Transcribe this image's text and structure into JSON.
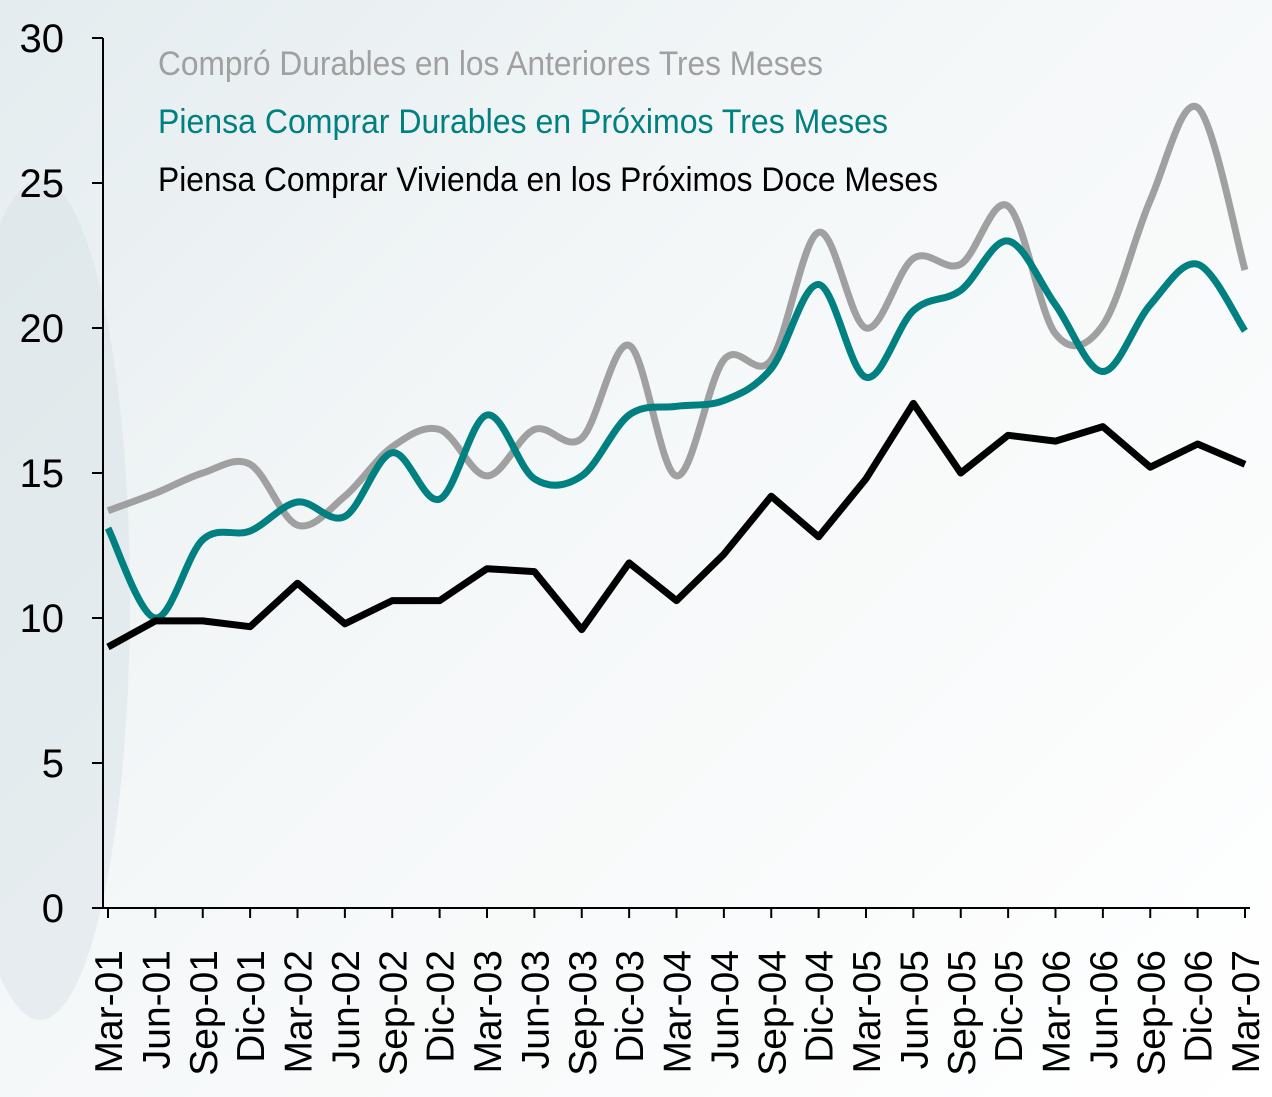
{
  "chart_data": {
    "type": "line",
    "categories": [
      "Mar-01",
      "Jun-01",
      "Sep-01",
      "Dic-01",
      "Mar-02",
      "Jun-02",
      "Sep-02",
      "Dic-02",
      "Mar-03",
      "Jun-03",
      "Sep-03",
      "Dic-03",
      "Mar-04",
      "Jun-04",
      "Sep-04",
      "Dic-04",
      "Mar-05",
      "Jun-05",
      "Sep-05",
      "Dic-05",
      "Mar-06",
      "Jun-06",
      "Sep-06",
      "Dic-06",
      "Mar-07"
    ],
    "series": [
      {
        "name": "Compró Durables en los Anteriores Tres Meses",
        "color": "#a0a0a0",
        "smooth": true,
        "values": [
          13.7,
          14.3,
          15.0,
          15.3,
          13.2,
          14.2,
          15.9,
          16.5,
          14.9,
          16.5,
          16.2,
          19.4,
          14.9,
          18.9,
          18.9,
          23.3,
          20.0,
          22.4,
          22.2,
          24.2,
          19.8,
          20.1,
          24.4,
          27.6,
          22.0
        ]
      },
      {
        "name": "Piensa Comprar Durables en Próximos Tres Meses",
        "color": "#008080",
        "smooth": true,
        "values": [
          13.1,
          10.0,
          12.7,
          13.0,
          14.0,
          13.5,
          15.7,
          14.1,
          17.0,
          14.8,
          14.9,
          17.0,
          17.3,
          17.5,
          18.6,
          21.5,
          18.3,
          20.6,
          21.3,
          23.0,
          20.8,
          18.5,
          20.8,
          22.2,
          19.9
        ]
      },
      {
        "name": "Piensa Comprar Vivienda en los Próximos Doce Meses",
        "color": "#000000",
        "smooth": false,
        "values": [
          9.0,
          9.9,
          9.9,
          9.7,
          11.2,
          9.8,
          10.6,
          10.6,
          11.7,
          11.6,
          9.6,
          11.9,
          10.6,
          12.2,
          14.2,
          12.8,
          14.8,
          17.4,
          15.0,
          16.3,
          16.1,
          16.6,
          15.2,
          16.0,
          15.3
        ]
      }
    ],
    "ylim": [
      0,
      30
    ],
    "yticks": [
      0,
      5,
      10,
      15,
      20,
      25,
      30
    ],
    "grid": false
  }
}
